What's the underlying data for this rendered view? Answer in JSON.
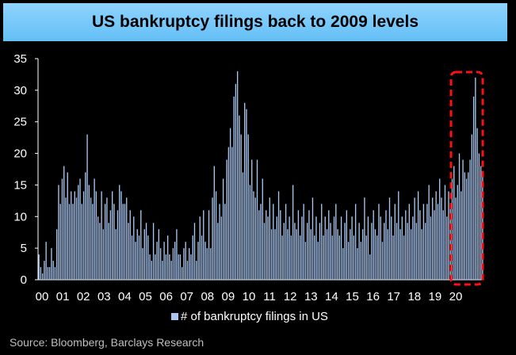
{
  "header": {
    "title": "US bankruptcy filings back to 2009 levels"
  },
  "footer": {
    "source": "Source: Bloomberg, Barclays Research"
  },
  "colors": {
    "bar": "#a9c6f0",
    "highlight": "#ff1010",
    "axis": "#ffffff",
    "background": "#000000"
  },
  "chart_data": {
    "type": "bar",
    "title": "US bankruptcy filings back to 2009 levels",
    "xlabel": "",
    "ylabel": "",
    "ylim": [
      0,
      35
    ],
    "yticks": [
      0,
      5,
      10,
      15,
      20,
      25,
      30,
      35
    ],
    "xtick_labels": [
      "00",
      "01",
      "02",
      "03",
      "04",
      "05",
      "06",
      "07",
      "08",
      "09",
      "10",
      "11",
      "12",
      "13",
      "14",
      "15",
      "16",
      "17",
      "18",
      "19",
      "20"
    ],
    "grid": false,
    "legend": "bottom-center",
    "highlight": "2020 (red dashed box)",
    "series": [
      {
        "name": "# of bankruptcy filings in US",
        "values": [
          4,
          2,
          1,
          3,
          6,
          2,
          2,
          5,
          3,
          2,
          8,
          15,
          12,
          16,
          18,
          13,
          17,
          12,
          14,
          12,
          14,
          13,
          15,
          16,
          12,
          14,
          17,
          23,
          15,
          13,
          12,
          16,
          14,
          10,
          9,
          14,
          8,
          12,
          13,
          9,
          11,
          14,
          12,
          8,
          11,
          15,
          14,
          12,
          12,
          13,
          9,
          11,
          7,
          10,
          6,
          8,
          7,
          11,
          5,
          8,
          9,
          7,
          4,
          3,
          9,
          4,
          6,
          8,
          5,
          3,
          6,
          4,
          7,
          4,
          3,
          5,
          6,
          8,
          4,
          4,
          2,
          5,
          6,
          3,
          5,
          4,
          7,
          9,
          3,
          6,
          10,
          7,
          11,
          6,
          5,
          11,
          5,
          13,
          18,
          14,
          9,
          12,
          10,
          16,
          12,
          19,
          21,
          24,
          21,
          29,
          31,
          33,
          26,
          23,
          17,
          28,
          27,
          23,
          15,
          19,
          14,
          13,
          19,
          11,
          12,
          16,
          9,
          11,
          10,
          13,
          8,
          12,
          8,
          10,
          14,
          11,
          7,
          9,
          12,
          8,
          10,
          7,
          15,
          9,
          8,
          11,
          7,
          10,
          12,
          6,
          9,
          11,
          8,
          13,
          7,
          10,
          6,
          9,
          12,
          7,
          10,
          8,
          11,
          9,
          7,
          10,
          12,
          8,
          7,
          10,
          5,
          9,
          11,
          6,
          8,
          10,
          7,
          12,
          5,
          9,
          6,
          8,
          13,
          7,
          10,
          4,
          9,
          11,
          8,
          7,
          12,
          10,
          6,
          9,
          11,
          8,
          13,
          10,
          7,
          12,
          9,
          14,
          8,
          10,
          7,
          11,
          9,
          12,
          8,
          10,
          13,
          9,
          14,
          11,
          8,
          12,
          9,
          12,
          15,
          10,
          13,
          11,
          14,
          12,
          16,
          13,
          11,
          15,
          10,
          14,
          12,
          16,
          18,
          13,
          15,
          20,
          14,
          19,
          17,
          16,
          17,
          19,
          23,
          29,
          32,
          24,
          20,
          18,
          17
        ]
      }
    ]
  }
}
